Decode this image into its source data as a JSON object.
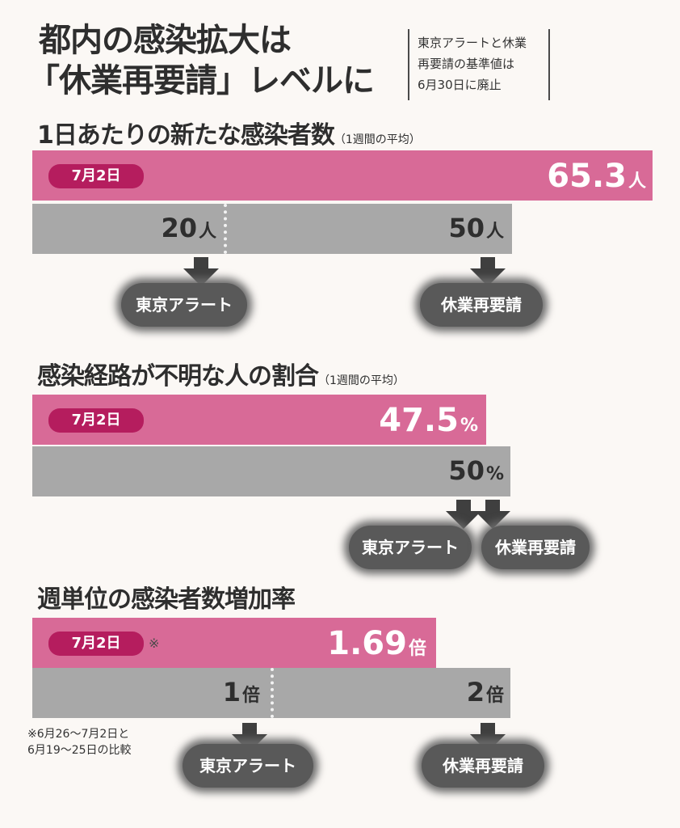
{
  "headline": {
    "line1": "都内の感染拡大は",
    "line2": "「休業再要請」レベルに"
  },
  "note": {
    "line1": "東京アラートと休業",
    "line2": "再要請の基準値は",
    "line3": "6月30日に廃止"
  },
  "colors": {
    "current_bar": "#d86a97",
    "threshold_bar": "#a8a8a8",
    "date_pill": "#b51d5e",
    "cloud": "#595959"
  },
  "chart_data": [
    {
      "type": "bar",
      "title": "1日あたりの新たな感染者数",
      "subtitle": "（1週間の平均）",
      "date_label": "7月2日",
      "value": 65.3,
      "value_label": "65.3",
      "unit": "人",
      "threshold_bar_max": 60,
      "thresholds": [
        {
          "value": 20,
          "label": "20",
          "unit": "人",
          "alert": "東京アラート"
        },
        {
          "value": 50,
          "label": "50",
          "unit": "人",
          "alert": "休業再要請"
        }
      ]
    },
    {
      "type": "bar",
      "title": "感染経路が不明な人の割合",
      "subtitle": "（1週間の平均）",
      "date_label": "7月2日",
      "value": 47.5,
      "value_label": "47.5",
      "unit": "%",
      "threshold_bar_max": 50,
      "thresholds": [
        {
          "value": 50,
          "label": "50",
          "unit": "%",
          "alerts": [
            "東京アラート",
            "休業再要請"
          ]
        }
      ]
    },
    {
      "type": "bar",
      "title": "週単位の感染者数増加率",
      "date_label": "7月2日",
      "date_mark": "※",
      "value": 1.69,
      "value_label": "1.69",
      "unit": "倍",
      "threshold_bar_max": 2.32,
      "thresholds": [
        {
          "value": 1,
          "label": "1",
          "unit": "倍",
          "alert": "東京アラート"
        },
        {
          "value": 2,
          "label": "2",
          "unit": "倍",
          "alert": "休業再要請"
        }
      ],
      "footnote": {
        "line1": "※6月26～7月2日と",
        "line2": "6月19～25日の比較"
      }
    }
  ]
}
